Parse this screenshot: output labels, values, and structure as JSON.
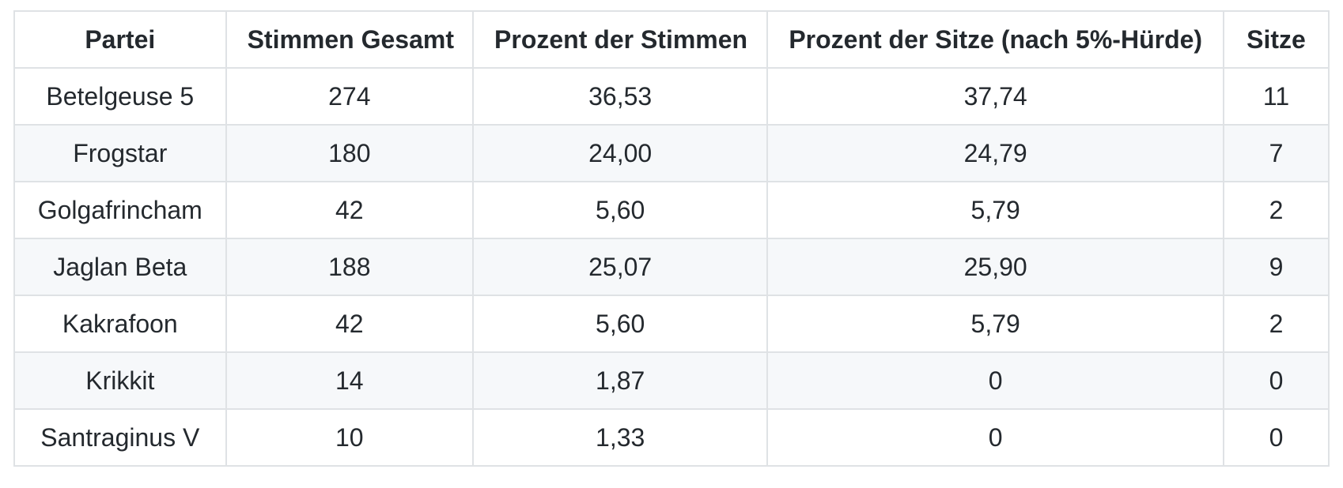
{
  "colors": {
    "border": "#dfe2e5",
    "row_stripe": "#f6f8fa",
    "text": "#24292e",
    "background": "#ffffff"
  },
  "table": {
    "columns": [
      "Partei",
      "Stimmen Gesamt",
      "Prozent der Stimmen",
      "Prozent der Sitze (nach 5%-Hürde)",
      "Sitze"
    ],
    "rows": [
      {
        "partei": "Betelgeuse 5",
        "stimmen": "274",
        "prozent_stimmen": "36,53",
        "prozent_sitze": "37,74",
        "sitze": "11"
      },
      {
        "partei": "Frogstar",
        "stimmen": "180",
        "prozent_stimmen": "24,00",
        "prozent_sitze": "24,79",
        "sitze": "7"
      },
      {
        "partei": "Golgafrincham",
        "stimmen": "42",
        "prozent_stimmen": "5,60",
        "prozent_sitze": "5,79",
        "sitze": "2"
      },
      {
        "partei": "Jaglan Beta",
        "stimmen": "188",
        "prozent_stimmen": "25,07",
        "prozent_sitze": "25,90",
        "sitze": "9"
      },
      {
        "partei": "Kakrafoon",
        "stimmen": "42",
        "prozent_stimmen": "5,60",
        "prozent_sitze": "5,79",
        "sitze": "2"
      },
      {
        "partei": "Krikkit",
        "stimmen": "14",
        "prozent_stimmen": "1,87",
        "prozent_sitze": "0",
        "sitze": "0"
      },
      {
        "partei": "Santraginus V",
        "stimmen": "10",
        "prozent_stimmen": "1,33",
        "prozent_sitze": "0",
        "sitze": "0"
      }
    ]
  }
}
